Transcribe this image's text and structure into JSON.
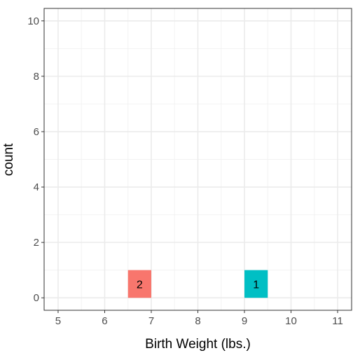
{
  "chart_data": {
    "type": "bar",
    "xlabel": "Birth Weight (lbs.)",
    "ylabel": "count",
    "xlim": [
      4.7,
      11.3
    ],
    "ylim": [
      -0.45,
      10.45
    ],
    "x_ticks": [
      5,
      6,
      7,
      8,
      9,
      10,
      11
    ],
    "y_ticks": [
      0,
      2,
      4,
      6,
      8,
      10
    ],
    "grid": true,
    "legend": "none",
    "bars": [
      {
        "x_start": 6.5,
        "x_end": 7.0,
        "count": 1,
        "label": "2",
        "color": "#f8766d"
      },
      {
        "x_start": 9.0,
        "x_end": 9.5,
        "count": 1,
        "label": "1",
        "color": "#00bfc4"
      }
    ]
  }
}
